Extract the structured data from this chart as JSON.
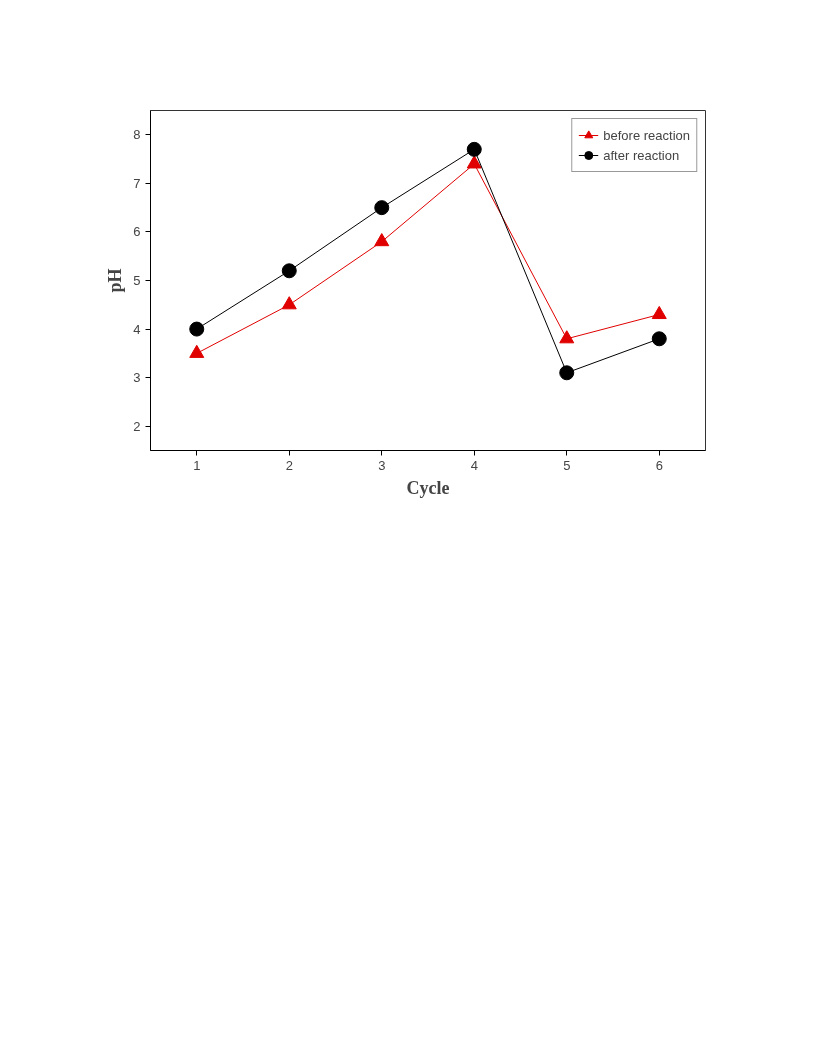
{
  "chart_data": {
    "type": "line",
    "xlabel": "Cycle",
    "ylabel": "pH",
    "x": [
      1,
      2,
      3,
      4,
      5,
      6
    ],
    "xlim": [
      0.5,
      6.5
    ],
    "xticks": [
      1,
      2,
      3,
      4,
      5,
      6
    ],
    "ylim": [
      1.5,
      8.5
    ],
    "yticks": [
      2,
      3,
      4,
      5,
      6,
      7,
      8
    ],
    "series": [
      {
        "name": "before reaction",
        "color": "#e00000",
        "marker": "triangle",
        "values": [
          3.5,
          4.5,
          5.8,
          7.4,
          3.8,
          4.3
        ]
      },
      {
        "name": "after reaction",
        "color": "#000000",
        "marker": "circle",
        "values": [
          4.0,
          5.2,
          6.5,
          7.7,
          3.1,
          3.8
        ]
      }
    ],
    "legend": "top right",
    "grid": false,
    "line_style": "solid"
  }
}
